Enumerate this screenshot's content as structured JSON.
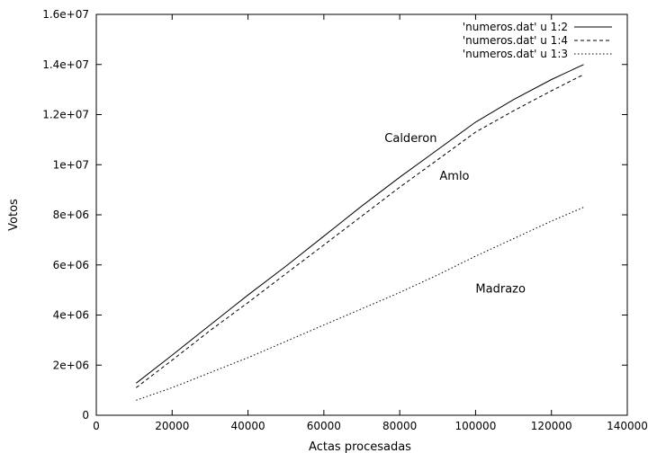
{
  "chart_data": {
    "type": "line",
    "title": "",
    "xlabel": "Actas procesadas",
    "ylabel": "Votos",
    "xlim": [
      0,
      140000
    ],
    "ylim": [
      0,
      16000000
    ],
    "x_ticks": [
      "0",
      "20000",
      "40000",
      "60000",
      "80000",
      "100000",
      "120000",
      "140000"
    ],
    "y_ticks": [
      "0",
      "2e+06",
      "4e+06",
      "6e+06",
      "8e+06",
      "1e+07",
      "1.2e+07",
      "1.4e+07",
      "1.6e+07"
    ],
    "grid": false,
    "legend_position": "top-right",
    "series": [
      {
        "name": "'numeros.dat' u 1:2",
        "style": "solid",
        "color": "#000000",
        "x": [
          10500,
          20000,
          30000,
          40000,
          50000,
          60000,
          70000,
          80000,
          90000,
          100000,
          110000,
          120000,
          128500
        ],
        "y": [
          1280000,
          2400000,
          3600000,
          4800000,
          5950000,
          7150000,
          8350000,
          9500000,
          10600000,
          11700000,
          12600000,
          13400000,
          14000000
        ]
      },
      {
        "name": "'numeros.dat' u 1:4",
        "style": "dashed",
        "color": "#000000",
        "x": [
          10500,
          20000,
          30000,
          40000,
          50000,
          60000,
          70000,
          80000,
          90000,
          100000,
          110000,
          120000,
          128500
        ],
        "y": [
          1100000,
          2200000,
          3380000,
          4500000,
          5650000,
          6800000,
          7950000,
          9100000,
          10200000,
          11300000,
          12150000,
          12950000,
          13600000
        ]
      },
      {
        "name": "'numeros.dat' u 1:3",
        "style": "dotted",
        "color": "#000000",
        "x": [
          10500,
          20000,
          30000,
          40000,
          50000,
          60000,
          70000,
          80000,
          90000,
          100000,
          110000,
          120000,
          128500
        ],
        "y": [
          600000,
          1100000,
          1700000,
          2300000,
          2950000,
          3600000,
          4250000,
          4900000,
          5600000,
          6350000,
          7050000,
          7750000,
          8300000
        ]
      }
    ],
    "annotations": [
      {
        "text": "Calderon",
        "x": 76000,
        "y": 10900000
      },
      {
        "text": "Amlo",
        "x": 90500,
        "y": 9400000
      },
      {
        "text": "Madrazo",
        "x": 100000,
        "y": 4900000
      }
    ]
  }
}
